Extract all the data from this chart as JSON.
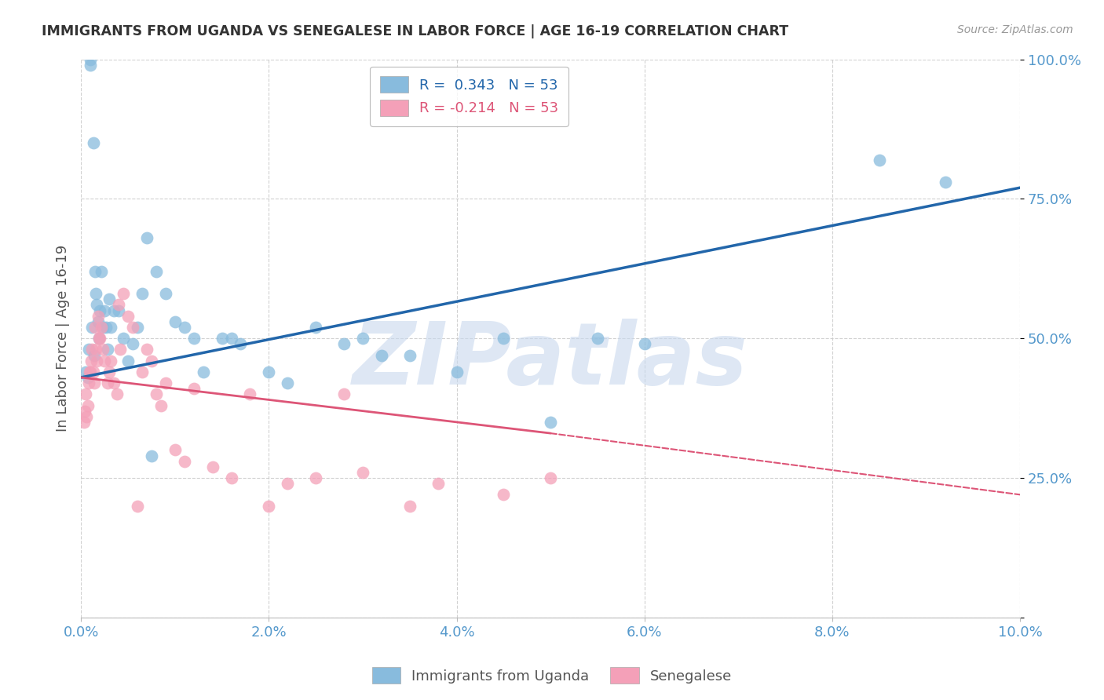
{
  "title": "IMMIGRANTS FROM UGANDA VS SENEGALESE IN LABOR FORCE | AGE 16-19 CORRELATION CHART",
  "source": "Source: ZipAtlas.com",
  "ylabel": "In Labor Force | Age 16-19",
  "xlim": [
    0.0,
    10.0
  ],
  "ylim": [
    0.0,
    100.0
  ],
  "xtick_vals": [
    0,
    2,
    4,
    6,
    8,
    10
  ],
  "ytick_vals": [
    0,
    25,
    50,
    75,
    100
  ],
  "xtick_labels": [
    "0.0%",
    "2.0%",
    "4.0%",
    "6.0%",
    "8.0%",
    "10.0%"
  ],
  "ytick_labels": [
    "",
    "25.0%",
    "50.0%",
    "75.0%",
    "100.0%"
  ],
  "R_uganda": 0.343,
  "N_uganda": 53,
  "R_senegal": -0.214,
  "N_senegal": 53,
  "blue_color": "#88bbdd",
  "pink_color": "#f4a0b8",
  "blue_line_color": "#2266aa",
  "pink_line_color": "#dd5577",
  "axis_tick_color": "#5599cc",
  "grid_color": "#cccccc",
  "watermark": "ZIPatlas",
  "watermark_color": "#c8d8ee",
  "uganda_line_x0": 0.0,
  "uganda_line_y0": 43.0,
  "uganda_line_x1": 10.0,
  "uganda_line_y1": 77.0,
  "senegal_line_x0": 0.0,
  "senegal_line_y0": 43.0,
  "senegal_line_x1_solid": 5.0,
  "senegal_line_y1_solid": 33.0,
  "senegal_line_x1_dash": 10.0,
  "senegal_line_y1_dash": 22.0,
  "ug_x": [
    0.05,
    0.07,
    0.08,
    0.1,
    0.1,
    0.12,
    0.13,
    0.14,
    0.15,
    0.16,
    0.17,
    0.18,
    0.19,
    0.2,
    0.22,
    0.23,
    0.25,
    0.27,
    0.28,
    0.3,
    0.32,
    0.35,
    0.4,
    0.45,
    0.5,
    0.55,
    0.6,
    0.7,
    0.8,
    0.9,
    1.0,
    1.1,
    1.2,
    1.3,
    1.5,
    1.6,
    1.7,
    2.0,
    2.2,
    2.5,
    3.0,
    3.5,
    4.0,
    4.5,
    5.0,
    5.5,
    6.0,
    2.8,
    3.2,
    8.5,
    9.2,
    0.65,
    0.75
  ],
  "ug_y": [
    44,
    43,
    48,
    99,
    100,
    52,
    85,
    47,
    62,
    58,
    56,
    53,
    50,
    55,
    62,
    52,
    55,
    52,
    48,
    57,
    52,
    55,
    55,
    50,
    46,
    49,
    52,
    68,
    62,
    58,
    53,
    52,
    50,
    44,
    50,
    50,
    49,
    44,
    42,
    52,
    50,
    47,
    44,
    50,
    35,
    50,
    49,
    49,
    47,
    82,
    78,
    58,
    29
  ],
  "sn_x": [
    0.03,
    0.04,
    0.05,
    0.06,
    0.07,
    0.08,
    0.09,
    0.1,
    0.11,
    0.12,
    0.13,
    0.14,
    0.15,
    0.16,
    0.17,
    0.18,
    0.19,
    0.2,
    0.22,
    0.23,
    0.25,
    0.28,
    0.3,
    0.32,
    0.35,
    0.38,
    0.4,
    0.45,
    0.5,
    0.55,
    0.6,
    0.65,
    0.7,
    0.75,
    0.8,
    0.85,
    0.9,
    1.0,
    1.1,
    1.2,
    1.4,
    1.6,
    1.8,
    2.0,
    2.5,
    3.0,
    3.5,
    3.8,
    4.5,
    5.0,
    2.2,
    2.8,
    0.42
  ],
  "sn_y": [
    35,
    37,
    40,
    36,
    38,
    42,
    44,
    44,
    46,
    48,
    44,
    42,
    52,
    48,
    46,
    54,
    50,
    50,
    52,
    48,
    46,
    42,
    44,
    46,
    42,
    40,
    56,
    58,
    54,
    52,
    20,
    44,
    48,
    46,
    40,
    38,
    42,
    30,
    28,
    41,
    27,
    25,
    40,
    20,
    25,
    26,
    20,
    24,
    22,
    25,
    24,
    40,
    48
  ]
}
